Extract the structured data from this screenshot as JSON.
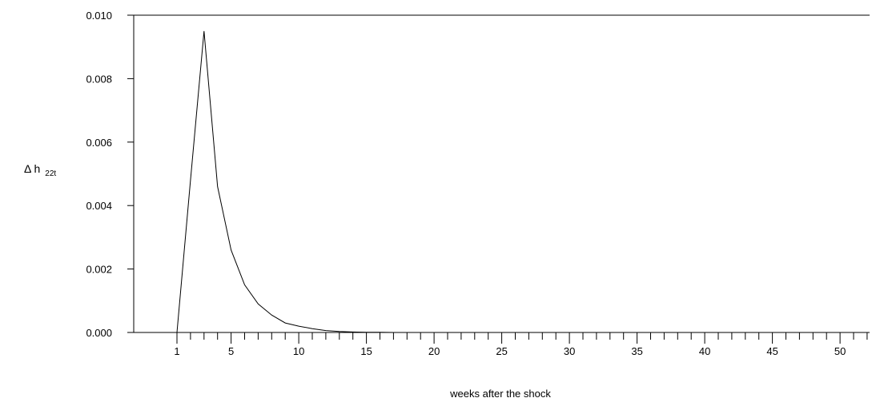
{
  "chart_data": {
    "type": "line",
    "title": "",
    "xlabel": "weeks after the shock",
    "ylabel": {
      "main": "Δ h",
      "subscript": "22t"
    },
    "xlim": [
      1,
      53
    ],
    "ylim": [
      0,
      0.01
    ],
    "x_tick_labels": [
      1,
      5,
      10,
      15,
      20,
      25,
      30,
      35,
      40,
      45,
      50
    ],
    "y_tick_labels": [
      "0.000",
      "0.002",
      "0.004",
      "0.006",
      "0.008",
      "0.010"
    ],
    "y_tick_values": [
      0,
      0.002,
      0.004,
      0.006,
      0.008,
      0.01
    ],
    "grid": false,
    "series": [
      {
        "x": [
          1,
          2,
          3,
          4,
          5,
          6,
          7,
          8,
          9,
          10,
          11,
          12,
          13,
          14,
          15,
          16,
          17,
          18,
          19,
          20,
          21,
          22,
          23,
          24,
          25,
          26,
          27,
          28,
          29,
          30,
          31,
          32,
          33,
          34,
          35,
          36,
          37,
          38,
          39,
          40,
          41,
          42,
          43,
          44,
          45,
          46,
          47,
          48,
          49,
          50,
          51,
          52
        ],
        "values": [
          0,
          0.0048,
          0.0095,
          0.0046,
          0.0026,
          0.0015,
          0.0009,
          0.00055,
          0.0003,
          0.0002,
          0.00012,
          6e-05,
          3e-05,
          1.5e-05,
          8e-06,
          4e-06,
          0,
          0,
          0,
          0,
          0,
          0,
          0,
          0,
          0,
          0,
          0,
          0,
          0,
          0,
          0,
          0,
          0,
          0,
          0,
          0,
          0,
          0,
          0,
          0,
          0,
          0,
          0,
          0,
          0,
          0,
          0,
          0,
          0,
          0,
          0,
          0
        ]
      }
    ]
  }
}
